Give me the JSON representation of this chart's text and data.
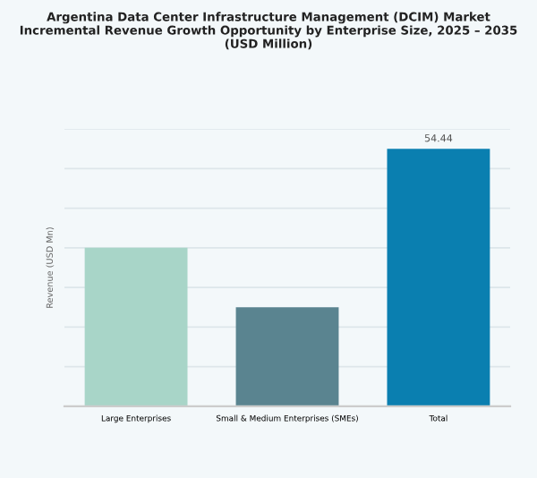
{
  "chart_data": {
    "type": "bar",
    "title": "Argentina Data Center Infrastructure Management (DCIM) Market\nIncremental Revenue Growth Opportunity by Enterprise Size, 2025 – 2035\n(USD Million)",
    "ylabel": "Revenue (USD Mn)",
    "categories": [
      "Large Enterprises",
      "Small & Medium Enterprises (SMEs)",
      "Total"
    ],
    "values": [
      33.5,
      20.94,
      54.44
    ],
    "colors": [
      "#a8d5c8",
      "#5a8490",
      "#0a7fb0"
    ],
    "value_labels": [
      null,
      null,
      "54.44"
    ],
    "ylim": [
      0,
      58.6
    ],
    "yticks": [
      {
        "value": 0,
        "label": null
      },
      {
        "value": 8.37,
        "label": null
      },
      {
        "value": 16.74,
        "label": null
      },
      {
        "value": 25.11,
        "label": null
      },
      {
        "value": 33.49,
        "label": null
      },
      {
        "value": 41.86,
        "label": null
      },
      {
        "value": 50.23,
        "label": null
      },
      {
        "value": 58.6,
        "label": null
      }
    ],
    "tick_labels": "x",
    "grid": "y",
    "legend": false
  }
}
